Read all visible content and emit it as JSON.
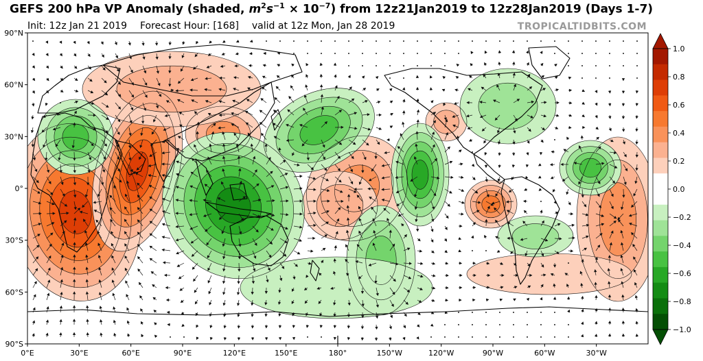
{
  "title": {
    "main": "GEFS 200 hPa VP Anomaly (shaded, ",
    "unit_m": "m",
    "unit_m_exp": "2",
    "unit_s": "s",
    "unit_s_exp": "−1",
    "unit_mult": " × 10",
    "unit_mult_exp": "−7",
    "suffix": ") from 12z21Jan2019 to 12z28Jan2019 (Days 1-7)"
  },
  "subtitle": {
    "init": "Init: 12z Jan 21 2019",
    "forecast_hour": "Forecast Hour: [168]",
    "valid": "valid at 12z Mon, Jan 28 2019"
  },
  "credit": "TROPICALTIDBITS.COM",
  "map": {
    "projection": "equirectangular",
    "lon_ticks": [
      "0°E",
      "30°E",
      "60°E",
      "90°E",
      "120°E",
      "150°E",
      "180°",
      "150°W",
      "120°W",
      "90°W",
      "60°W",
      "30°W"
    ],
    "lat_ticks": [
      "90°N",
      "60°N",
      "30°N",
      "0°",
      "30°S",
      "60°S",
      "90°S"
    ]
  },
  "colorbar": {
    "labels": [
      "1.0",
      "0.8",
      "0.6",
      "0.4",
      "0.2",
      "0.0",
      "−0.2",
      "−0.4",
      "−0.6",
      "−0.8",
      "−1.0"
    ],
    "colors": [
      "#a31800",
      "#c42a00",
      "#de3e05",
      "#f05a14",
      "#f7792f",
      "#f9925a",
      "#fbb190",
      "#fdd0bb",
      "#ffffff",
      "#ffffff",
      "#c8f0c0",
      "#9fe397",
      "#74d46c",
      "#48c242",
      "#28a826",
      "#148c14",
      "#0a700a",
      "#044f04"
    ]
  },
  "shading": {
    "positive_colors": [
      "#fdd0bb",
      "#fbb190",
      "#f9925a",
      "#f7792f",
      "#f05a14",
      "#de3e05"
    ],
    "negative_colors": [
      "#c8f0c0",
      "#9fe397",
      "#74d46c",
      "#48c242",
      "#28a826",
      "#148c14"
    ]
  }
}
